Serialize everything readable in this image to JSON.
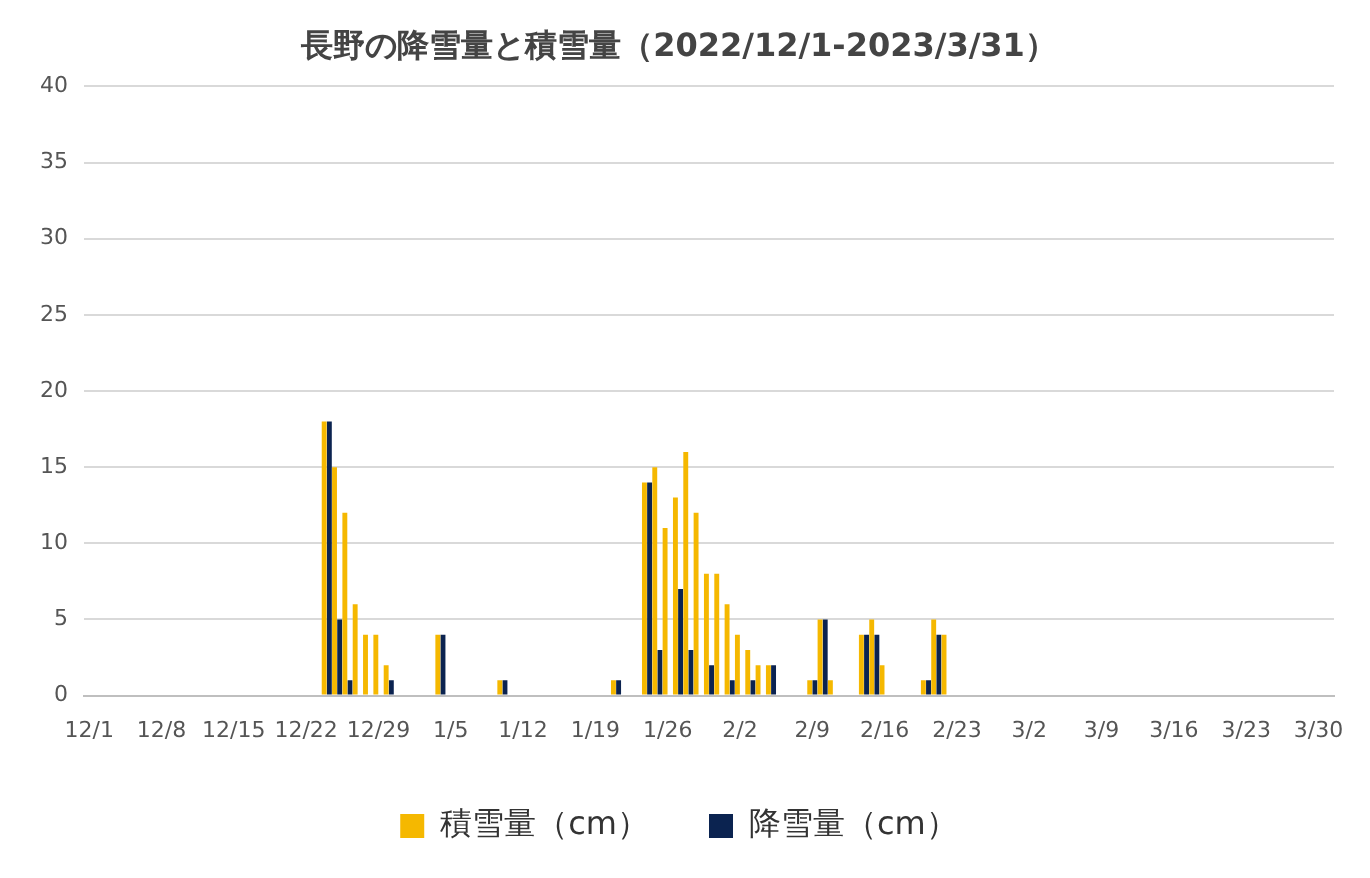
{
  "chart_data": {
    "type": "bar",
    "title": "長野の降雪量と積雪量（2022/12/1-2023/3/31）",
    "categories": [
      "12/1",
      null,
      null,
      null,
      null,
      null,
      null,
      "12/8",
      null,
      null,
      null,
      null,
      null,
      null,
      "12/15",
      null,
      null,
      null,
      null,
      null,
      null,
      "12/22",
      null,
      null,
      null,
      null,
      null,
      null,
      "12/29",
      null,
      null,
      null,
      null,
      null,
      null,
      "1/5",
      null,
      null,
      null,
      null,
      null,
      null,
      "1/12",
      null,
      null,
      null,
      null,
      null,
      null,
      "1/19",
      null,
      null,
      null,
      null,
      null,
      null,
      "1/26",
      null,
      null,
      null,
      null,
      null,
      null,
      "2/2",
      null,
      null,
      null,
      null,
      null,
      null,
      "2/9",
      null,
      null,
      null,
      null,
      null,
      null,
      "2/16",
      null,
      null,
      null,
      null,
      null,
      null,
      "2/23",
      null,
      null,
      null,
      null,
      null,
      null,
      "3/2",
      null,
      null,
      null,
      null,
      null,
      null,
      "3/9",
      null,
      null,
      null,
      null,
      null,
      null,
      "3/16",
      null,
      null,
      null,
      null,
      null,
      null,
      "3/23",
      null,
      null,
      null,
      null,
      null,
      null,
      "3/30",
      null
    ],
    "series": [
      {
        "name": "積雪量（cm）",
        "color": "#f5b800",
        "values": [
          0,
          0,
          0,
          0,
          0,
          0,
          0,
          0,
          0,
          0,
          0,
          0,
          0,
          0,
          0,
          0,
          0,
          0,
          0,
          0,
          0,
          0,
          0,
          18,
          15,
          12,
          6,
          4,
          4,
          2,
          0,
          0,
          0,
          0,
          4,
          0,
          0,
          0,
          0,
          0,
          1,
          0,
          0,
          0,
          0,
          0,
          0,
          0,
          0,
          0,
          0,
          1,
          0,
          0,
          14,
          15,
          11,
          13,
          16,
          12,
          8,
          8,
          6,
          4,
          3,
          2,
          2,
          0,
          0,
          0,
          1,
          5,
          1,
          0,
          0,
          4,
          5,
          2,
          0,
          0,
          0,
          1,
          5,
          4,
          0,
          0,
          0,
          0,
          0,
          0,
          0,
          0,
          0,
          0,
          0,
          0,
          0,
          0,
          0,
          0,
          0,
          0,
          0,
          0,
          0,
          0,
          0,
          0,
          0,
          0,
          0,
          0,
          0,
          0,
          0,
          0,
          0,
          0,
          0,
          0,
          0
        ]
      },
      {
        "name": "降雪量（cm）",
        "color": "#0b2350",
        "values": [
          0,
          0,
          0,
          0,
          0,
          0,
          0,
          0,
          0,
          0,
          0,
          0,
          0,
          0,
          0,
          0,
          0,
          0,
          0,
          0,
          0,
          0,
          0,
          18,
          5,
          1,
          0,
          0,
          0,
          1,
          0,
          0,
          0,
          0,
          4,
          0,
          0,
          0,
          0,
          0,
          1,
          0,
          0,
          0,
          0,
          0,
          0,
          0,
          0,
          0,
          0,
          1,
          0,
          0,
          14,
          3,
          0,
          7,
          3,
          0,
          2,
          0,
          1,
          0,
          1,
          0,
          2,
          0,
          0,
          0,
          1,
          5,
          0,
          0,
          0,
          4,
          4,
          0,
          0,
          0,
          0,
          1,
          4,
          0,
          0,
          0,
          0,
          0,
          0,
          0,
          0,
          0,
          0,
          0,
          0,
          0,
          0,
          0,
          0,
          0,
          0,
          0,
          0,
          0,
          0,
          0,
          0,
          0,
          0,
          0,
          0,
          0,
          0,
          0,
          0,
          0,
          0,
          0,
          0,
          0,
          0
        ]
      }
    ],
    "ylim": [
      0,
      40
    ],
    "yticks": [
      0,
      5,
      10,
      15,
      20,
      25,
      30,
      35,
      40
    ],
    "grid": "y",
    "legend": "bottom"
  }
}
